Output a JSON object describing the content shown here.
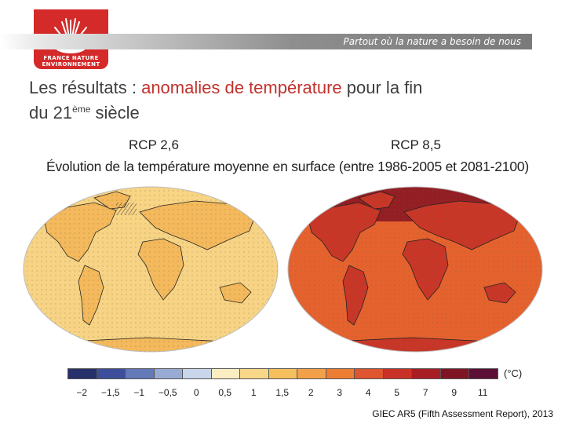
{
  "header": {
    "logo_line1": "FRANCE NATURE",
    "logo_line2": "ENVIRONNEMENT",
    "tagline": "Partout où la nature a besoin de nous"
  },
  "title": {
    "part1": "Les résultats : ",
    "highlight": "anomalies de température",
    "part2": " pour la fin",
    "line2_prefix": "du 21",
    "superscript": "ème",
    "line2_suffix": " siècle"
  },
  "figure": {
    "scenario_left": "RCP 2,6",
    "scenario_right": "RCP 8,5",
    "subtitle": "Évolution de la température moyenne en surface (entre 1986-2005 et 2081-2100)",
    "colorbar_unit": "(°C)",
    "colorbar_ticks": [
      "−2",
      "−1,5",
      "−1",
      "−0,5",
      "0",
      "0,5",
      "1",
      "1,5",
      "2",
      "3",
      "4",
      "5",
      "7",
      "9",
      "11"
    ],
    "colorbar_colors": [
      "#26306b",
      "#3d4f9a",
      "#6379b8",
      "#98abd4",
      "#c9d5ea",
      "#fbedc2",
      "#f8d788",
      "#f5bf5e",
      "#f2a04a",
      "#ec7d33",
      "#de5530",
      "#c93127",
      "#a81d24",
      "#7e1424",
      "#5c1037"
    ],
    "map_colors": {
      "ocean_left": "#f7d485",
      "land_left": "#f3b95c",
      "ocean_right": "#e5622e",
      "land_right": "#c83628",
      "arctic_right": "#8e1a24",
      "cool_patch": "#c9d5ea"
    }
  },
  "source": "GIEC AR5 (Fifth Assessment Report), 2013"
}
